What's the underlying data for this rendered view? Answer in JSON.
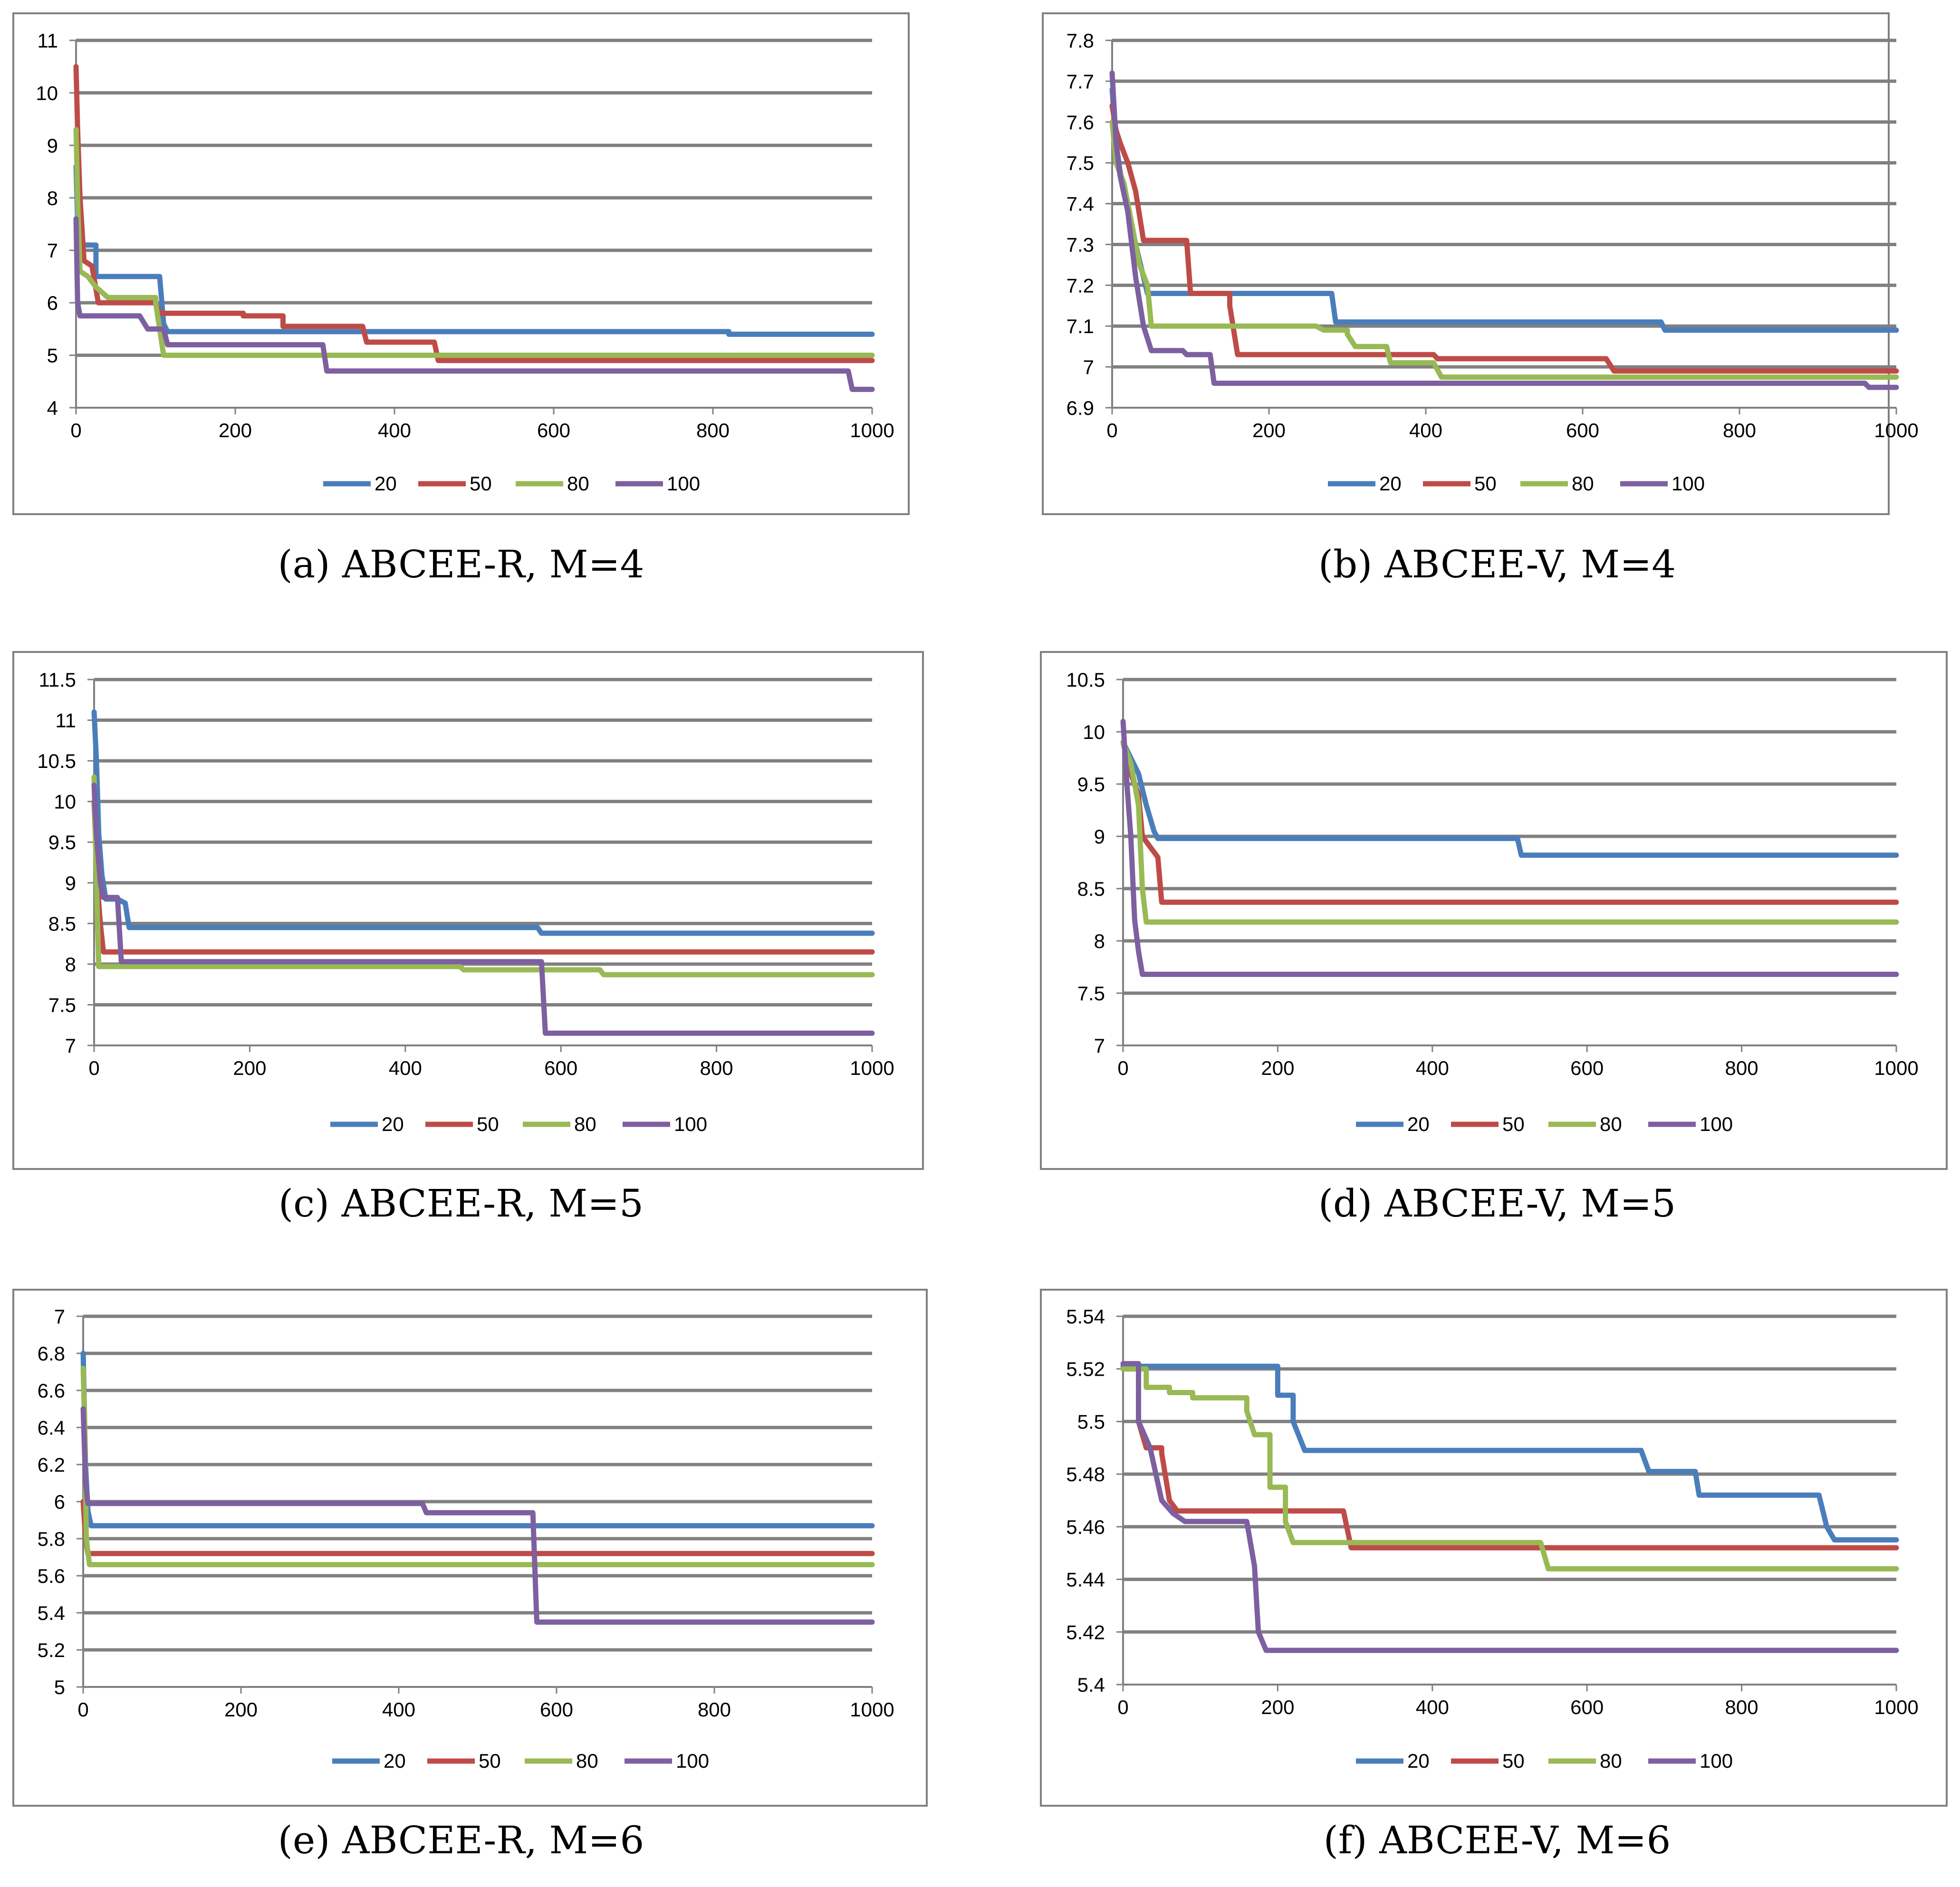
{
  "figure": {
    "captions": [
      "(a) ABCEE-R, M=4",
      "(b) ABCEE-V, M=4",
      "(c) ABCEE-R, M=5",
      "(d) ABCEE-V, M=5",
      "(e) ABCEE-R, M=6",
      "(f) ABCEE-V, M=6"
    ]
  },
  "colors": {
    "s20": "#4a7ebb",
    "s50": "#be4b48",
    "s80": "#98b954",
    "s100": "#7d60a0",
    "grid": "#808080",
    "axis": "#808080",
    "frame": "#808080"
  },
  "chart_data": [
    {
      "type": "line",
      "title": "(a) ABCEE-R, M=4",
      "xlabel": "",
      "ylabel": "",
      "xlim": [
        0,
        1000
      ],
      "ylim": [
        4,
        11
      ],
      "xticks": [
        0,
        200,
        400,
        600,
        800,
        1000
      ],
      "yticks": [
        4,
        5,
        6,
        7,
        8,
        9,
        10,
        11
      ],
      "ytick_labels": [
        "4",
        "5",
        "6",
        "7",
        "8",
        "9",
        "10",
        "11"
      ],
      "grid": true,
      "legend": "bottom",
      "series": [
        {
          "name": "20",
          "x": [
            0,
            2,
            4,
            8,
            25,
            105,
            110,
            115,
            800,
            820,
            1000
          ],
          "y": [
            8.6,
            7.6,
            7.2,
            7.1,
            6.5,
            6.5,
            5.6,
            5.45,
            5.45,
            5.4,
            5.4
          ]
        },
        {
          "name": "50",
          "x": [
            0,
            2,
            5,
            10,
            20,
            28,
            100,
            105,
            210,
            260,
            360,
            365,
            450,
            455,
            1000
          ],
          "y": [
            10.5,
            9.3,
            8.0,
            6.8,
            6.7,
            6.0,
            6.0,
            5.8,
            5.75,
            5.55,
            5.55,
            5.25,
            5.25,
            4.9,
            4.9
          ]
        },
        {
          "name": "80",
          "x": [
            0,
            2,
            5,
            15,
            25,
            40,
            70,
            100,
            105,
            110,
            1000
          ],
          "y": [
            9.3,
            8.0,
            6.6,
            6.5,
            6.3,
            6.1,
            6.1,
            6.0,
            5.5,
            5.0,
            5.0
          ]
        },
        {
          "name": "100",
          "x": [
            0,
            2,
            5,
            80,
            90,
            110,
            115,
            310,
            315,
            970,
            975,
            1000
          ],
          "y": [
            7.6,
            6.0,
            5.75,
            5.75,
            5.5,
            5.5,
            5.2,
            5.2,
            4.7,
            4.7,
            4.35,
            4.35
          ]
        }
      ]
    },
    {
      "type": "line",
      "title": "(b) ABCEE-V, M=4",
      "xlabel": "",
      "ylabel": "",
      "xlim": [
        0,
        1000
      ],
      "ylim": [
        6.9,
        7.8
      ],
      "xticks": [
        0,
        200,
        400,
        600,
        800,
        1000
      ],
      "yticks": [
        6.9,
        7.0,
        7.1,
        7.2,
        7.3,
        7.4,
        7.5,
        7.6,
        7.7,
        7.8
      ],
      "ytick_labels": [
        "6.9",
        "7",
        "7.1",
        "7.2",
        "7.3",
        "7.4",
        "7.5",
        "7.6",
        "7.7",
        "7.8"
      ],
      "grid": true,
      "legend": "bottom",
      "series": [
        {
          "name": "20",
          "x": [
            0,
            5,
            10,
            20,
            30,
            45,
            280,
            285,
            700,
            705,
            1000
          ],
          "y": [
            7.68,
            7.55,
            7.48,
            7.4,
            7.3,
            7.18,
            7.18,
            7.11,
            7.11,
            7.09,
            7.09
          ]
        },
        {
          "name": "50",
          "x": [
            0,
            5,
            10,
            20,
            30,
            40,
            95,
            100,
            150,
            160,
            410,
            415,
            630,
            640,
            1000
          ],
          "y": [
            7.64,
            7.58,
            7.55,
            7.5,
            7.43,
            7.31,
            7.31,
            7.18,
            7.15,
            7.03,
            7.03,
            7.02,
            7.02,
            6.99,
            6.99
          ]
        },
        {
          "name": "80",
          "x": [
            0,
            5,
            15,
            25,
            35,
            45,
            50,
            260,
            270,
            300,
            310,
            350,
            355,
            410,
            420,
            1000
          ],
          "y": [
            7.6,
            7.5,
            7.45,
            7.35,
            7.25,
            7.2,
            7.1,
            7.1,
            7.09,
            7.08,
            7.05,
            7.05,
            7.01,
            7.01,
            6.975,
            6.975
          ]
        },
        {
          "name": "100",
          "x": [
            0,
            5,
            10,
            20,
            30,
            40,
            50,
            90,
            95,
            125,
            130,
            960,
            965,
            1000
          ],
          "y": [
            7.72,
            7.55,
            7.47,
            7.38,
            7.22,
            7.1,
            7.04,
            7.04,
            7.03,
            7.03,
            6.96,
            6.96,
            6.95,
            6.95
          ]
        }
      ]
    },
    {
      "type": "line",
      "title": "(c) ABCEE-R, M=5",
      "xlabel": "",
      "ylabel": "",
      "xlim": [
        0,
        1000
      ],
      "ylim": [
        7,
        11.5
      ],
      "xticks": [
        0,
        200,
        400,
        600,
        800,
        1000
      ],
      "yticks": [
        7,
        7.5,
        8,
        8.5,
        9,
        9.5,
        10,
        10.5,
        11,
        11.5
      ],
      "ytick_labels": [
        "7",
        "7.5",
        "8",
        "8.5",
        "9",
        "9.5",
        "10",
        "10.5",
        "11",
        "11.5"
      ],
      "grid": true,
      "legend": "bottom",
      "series": [
        {
          "name": "20",
          "x": [
            0,
            3,
            6,
            10,
            15,
            30,
            40,
            45,
            570,
            575,
            1000
          ],
          "y": [
            11.1,
            10.5,
            9.6,
            9.1,
            8.8,
            8.8,
            8.75,
            8.45,
            8.45,
            8.38,
            8.38
          ]
        },
        {
          "name": "50",
          "x": [
            0,
            4,
            8,
            12,
            1000
          ],
          "y": [
            10.0,
            9.0,
            8.5,
            8.15,
            8.15
          ]
        },
        {
          "name": "80",
          "x": [
            0,
            3,
            6,
            470,
            475,
            650,
            655,
            1000
          ],
          "y": [
            10.3,
            9.0,
            7.97,
            7.97,
            7.93,
            7.93,
            7.87,
            7.87
          ]
        },
        {
          "name": "100",
          "x": [
            0,
            3,
            8,
            12,
            30,
            35,
            575,
            580,
            1000
          ],
          "y": [
            10.2,
            9.6,
            9.0,
            8.82,
            8.82,
            8.03,
            8.03,
            7.15,
            7.15
          ]
        }
      ]
    },
    {
      "type": "line",
      "title": "(d) ABCEE-V, M=5",
      "xlabel": "",
      "ylabel": "",
      "xlim": [
        0,
        1000
      ],
      "ylim": [
        7,
        10.5
      ],
      "xticks": [
        0,
        200,
        400,
        600,
        800,
        1000
      ],
      "yticks": [
        7,
        7.5,
        8,
        8.5,
        9,
        9.5,
        10,
        10.5
      ],
      "ytick_labels": [
        "7",
        "7.5",
        "8",
        "8.5",
        "9",
        "9.5",
        "10",
        "10.5"
      ],
      "grid": true,
      "legend": "bottom",
      "series": [
        {
          "name": "20",
          "x": [
            0,
            10,
            20,
            30,
            40,
            45,
            510,
            515,
            1000
          ],
          "y": [
            9.9,
            9.75,
            9.6,
            9.3,
            9.05,
            8.98,
            8.98,
            8.82,
            8.82
          ]
        },
        {
          "name": "50",
          "x": [
            0,
            10,
            20,
            25,
            35,
            45,
            50,
            1000
          ],
          "y": [
            9.9,
            9.6,
            9.4,
            9.0,
            8.9,
            8.8,
            8.37,
            8.37
          ]
        },
        {
          "name": "80",
          "x": [
            0,
            10,
            20,
            25,
            30,
            1000
          ],
          "y": [
            9.9,
            9.7,
            9.3,
            8.5,
            8.18,
            8.18
          ]
        },
        {
          "name": "100",
          "x": [
            0,
            5,
            10,
            15,
            20,
            25,
            1000
          ],
          "y": [
            10.1,
            9.5,
            9.0,
            8.2,
            7.9,
            7.68,
            7.68
          ]
        }
      ]
    },
    {
      "type": "line",
      "title": "(e) ABCEE-R, M=6",
      "xlabel": "",
      "ylabel": "",
      "xlim": [
        0,
        1000
      ],
      "ylim": [
        5,
        7
      ],
      "xticks": [
        0,
        200,
        400,
        600,
        800,
        1000
      ],
      "yticks": [
        5,
        5.2,
        5.4,
        5.6,
        5.8,
        6,
        6.2,
        6.4,
        6.6,
        6.8,
        7
      ],
      "ytick_labels": [
        "5",
        "5.2",
        "5.4",
        "5.6",
        "5.8",
        "6",
        "6.2",
        "6.4",
        "6.6",
        "6.8",
        "7"
      ],
      "grid": true,
      "legend": "bottom",
      "series": [
        {
          "name": "20",
          "x": [
            0,
            3,
            6,
            10,
            1000
          ],
          "y": [
            6.8,
            6.2,
            5.95,
            5.87,
            5.87
          ]
        },
        {
          "name": "50",
          "x": [
            0,
            3,
            6,
            1000
          ],
          "y": [
            6.0,
            5.8,
            5.72,
            5.72
          ]
        },
        {
          "name": "80",
          "x": [
            0,
            2,
            4,
            8,
            1000
          ],
          "y": [
            6.72,
            6.4,
            5.8,
            5.66,
            5.66
          ]
        },
        {
          "name": "100",
          "x": [
            0,
            3,
            6,
            430,
            435,
            570,
            575,
            1000
          ],
          "y": [
            6.5,
            6.1,
            5.99,
            5.99,
            5.94,
            5.94,
            5.35,
            5.35
          ]
        }
      ]
    },
    {
      "type": "line",
      "title": "(f) ABCEE-V, M=6",
      "xlabel": "",
      "ylabel": "",
      "xlim": [
        0,
        1000
      ],
      "ylim": [
        5.4,
        5.54
      ],
      "xticks": [
        0,
        200,
        400,
        600,
        800,
        1000
      ],
      "yticks": [
        5.4,
        5.42,
        5.44,
        5.46,
        5.48,
        5.5,
        5.52,
        5.54
      ],
      "ytick_labels": [
        "5.4",
        "5.42",
        "5.44",
        "5.46",
        "5.48",
        "5.5",
        "5.52",
        "5.54"
      ],
      "grid": true,
      "legend": "bottom",
      "series": [
        {
          "name": "20",
          "x": [
            0,
            180,
            200,
            220,
            235,
            670,
            680,
            740,
            745,
            900,
            910,
            920,
            1000
          ],
          "y": [
            5.521,
            5.521,
            5.51,
            5.5,
            5.489,
            5.489,
            5.481,
            5.481,
            5.472,
            5.472,
            5.46,
            5.455,
            5.455
          ]
        },
        {
          "name": "50",
          "x": [
            0,
            20,
            30,
            50,
            60,
            70,
            285,
            295,
            1000
          ],
          "y": [
            5.52,
            5.5,
            5.49,
            5.488,
            5.47,
            5.466,
            5.466,
            5.452,
            5.452
          ]
        },
        {
          "name": "80",
          "x": [
            0,
            30,
            60,
            90,
            160,
            170,
            190,
            210,
            220,
            540,
            550,
            1000
          ],
          "y": [
            5.52,
            5.513,
            5.511,
            5.509,
            5.504,
            5.495,
            5.475,
            5.462,
            5.454,
            5.454,
            5.444,
            5.444
          ]
        },
        {
          "name": "100",
          "x": [
            0,
            20,
            35,
            50,
            65,
            80,
            160,
            170,
            175,
            185,
            1000
          ],
          "y": [
            5.522,
            5.5,
            5.49,
            5.47,
            5.465,
            5.462,
            5.462,
            5.445,
            5.42,
            5.413,
            5.413
          ]
        }
      ]
    }
  ]
}
